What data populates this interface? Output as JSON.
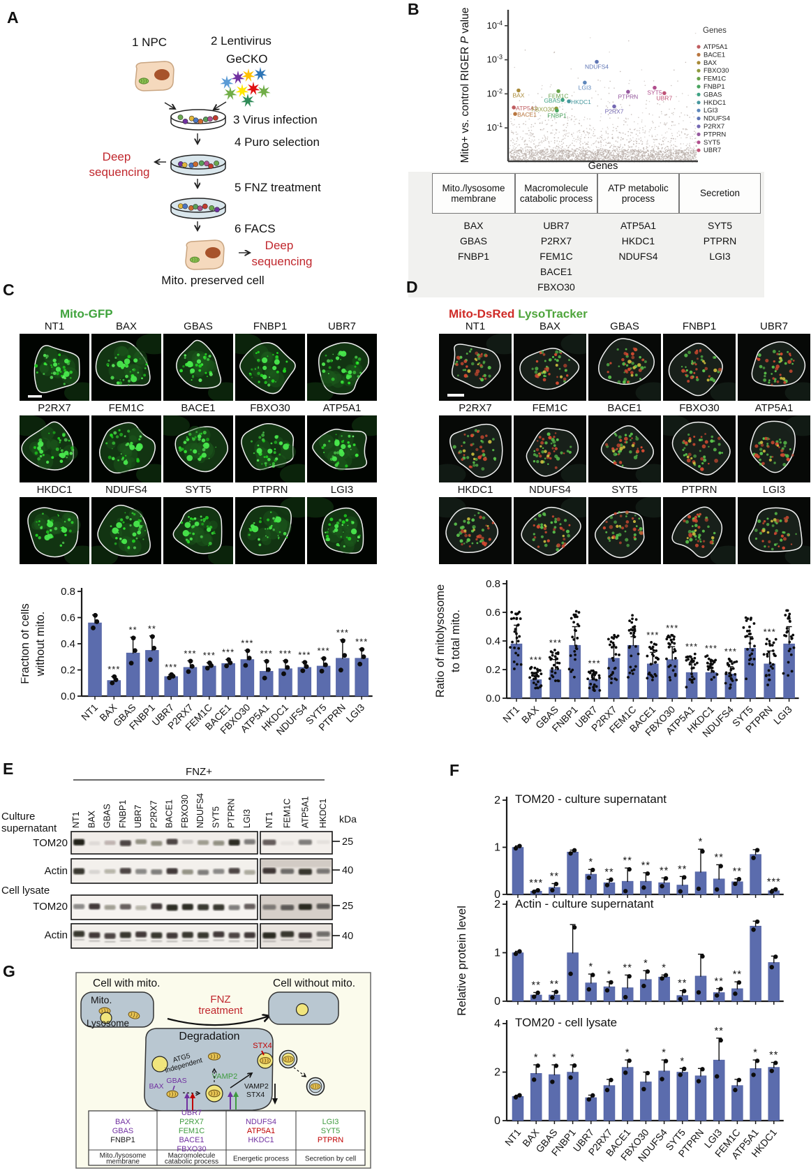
{
  "panel_labels": {
    "A": "A",
    "B": "B",
    "C": "C",
    "D": "D",
    "E": "E",
    "F": "F",
    "G": "G"
  },
  "panel_a": {
    "step1": "1  NPC",
    "step2_line1": "2  Lentivirus",
    "step2_line2": "GeCKO",
    "step3": "3  Virus infection",
    "step4": "4  Puro selection",
    "step5": "5  FNZ treatment",
    "step6": "6  FACS",
    "deep_seq_left_line1": "Deep",
    "deep_seq_left_line2": "sequencing",
    "deep_seq_right_line1": "Deep",
    "deep_seq_right_line2": "sequencing",
    "result_label": "Mito. preserved cell",
    "deep_seq_color": "#c0272d"
  },
  "panel_b": {
    "table": {
      "headers": [
        "Mito./lysosome membrane",
        "Macromolecule catabolic process",
        "ATP metabolic process",
        "Secretion"
      ],
      "columns": [
        [
          "BAX",
          "GBAS",
          "FNBP1"
        ],
        [
          "UBR7",
          "P2RX7",
          "FEM1C",
          "BACE1",
          "FBXO30"
        ],
        [
          "ATP5A1",
          "HKDC1",
          "NDUFS4"
        ],
        [
          "SYT5",
          "PTPRN",
          "LGI3"
        ]
      ]
    }
  },
  "panel_c": {
    "channel_label": "Mito-GFP",
    "channel_color": "#3fa33c",
    "grid_labels": [
      "NT1",
      "BAX",
      "GBAS",
      "FNBP1",
      "UBR7",
      "P2RX7",
      "FEM1C",
      "BACE1",
      "FBXO30",
      "ATP5A1",
      "HKDC1",
      "NDUFS4",
      "SYT5",
      "PTPRN",
      "LGI3"
    ]
  },
  "panel_d": {
    "channel_label_red": "Mito-DsRed",
    "channel_label_green": "LysoTracker",
    "red_color": "#cf2b27",
    "green_color": "#4fa53c",
    "grid_labels": [
      "NT1",
      "BAX",
      "GBAS",
      "FNBP1",
      "UBR7",
      "P2RX7",
      "FEM1C",
      "BACE1",
      "FBXO30",
      "ATP5A1",
      "HKDC1",
      "NDUFS4",
      "SYT5",
      "PTPRN",
      "LGI3"
    ]
  },
  "panel_e": {
    "group_label": "FNZ+",
    "lanes_main": [
      "NT1",
      "BAX",
      "GBAS",
      "FNBP1",
      "UBR7",
      "P2RX7",
      "BACE1",
      "FBXO30",
      "NDUFS4",
      "SYT5",
      "PTPRN",
      "LGI3"
    ],
    "lanes_extra": [
      "NT1",
      "FEM1C",
      "ATP5A1",
      "HKDC1"
    ],
    "group1_line1": "Culture",
    "group1_line2": "supernatant",
    "group2": "Cell lysate",
    "kda_label": "kDa",
    "rows": [
      {
        "name": "TOM20",
        "group": "culture supernatant",
        "marker": "25",
        "bands_main": [
          1,
          0.08,
          0.25,
          0.8,
          0.45,
          0.45,
          0.8,
          0.15,
          0.4,
          0.45,
          0.95,
          0.55
        ],
        "bands_extra": [
          0.7,
          0.05,
          0.55,
          0.06
        ]
      },
      {
        "name": "Actin",
        "group": "culture supernatant",
        "marker": "40",
        "bands_main": [
          0.9,
          0.12,
          0.3,
          0.8,
          0.5,
          0.55,
          0.85,
          0.45,
          0.55,
          0.5,
          0.8,
          0.35
        ],
        "bands_extra": [
          0.85,
          0.6,
          0.9,
          0.55
        ]
      },
      {
        "name": "TOM20",
        "group": "cell lysate",
        "marker": "25",
        "bands_main": [
          0.5,
          0.85,
          0.4,
          0.7,
          0.3,
          0.85,
          0.95,
          0.95,
          0.9,
          0.9,
          0.55,
          0.7
        ],
        "bands_extra": [
          0.5,
          0.65,
          0.95,
          0.65
        ]
      },
      {
        "name": "Actin",
        "group": "cell lysate",
        "marker": "40",
        "bands_main": [
          0.9,
          0.85,
          0.8,
          0.9,
          0.85,
          0.9,
          0.85,
          0.9,
          0.9,
          0.85,
          0.8,
          0.85
        ],
        "bands_extra": [
          0.95,
          0.9,
          0.85,
          0.6
        ]
      }
    ]
  },
  "panel_g": {
    "cell_with": "Cell with mito.",
    "cell_without": "Cell without mito.",
    "mito": "Mito.",
    "lysosome": "Lysosome",
    "fnz_line1": "FNZ",
    "fnz_line2": "treatment",
    "degradation": "Degradation",
    "atg5_line1": "ATG5",
    "atg5_line2": "independent",
    "bax": "BAX",
    "gbas": "GBAS",
    "vamp2": "VAMP2",
    "stx4": "STX4",
    "vamp2_stx4_line1": "VAMP2",
    "vamp2_stx4_line2": "STX4",
    "colors": {
      "purple": "#7030a0",
      "green": "#3f9b3f",
      "red": "#c00000",
      "fnz": "#c0272d",
      "cell_fill": "#b9c7d1",
      "bg": "#fbfbec"
    },
    "table": {
      "columns": [
        {
          "header_line1": "Mito./lysosome",
          "header_line2": "membrane",
          "genes": [
            {
              "name": "BAX",
              "color": "#7030a0"
            },
            {
              "name": "GBAS",
              "color": "#7030a0"
            },
            {
              "name": "FNBP1",
              "color": "#1a1a1a"
            }
          ]
        },
        {
          "header_line1": "Macromolecule",
          "header_line2": "catabolic process",
          "genes": [
            {
              "name": "UBR7",
              "color": "#7030a0"
            },
            {
              "name": "P2RX7",
              "color": "#3f9b3f"
            },
            {
              "name": "FEM1C",
              "color": "#3f9b3f"
            },
            {
              "name": "BACE1",
              "color": "#7030a0"
            },
            {
              "name": "FBXO30",
              "color": "#7030a0"
            }
          ]
        },
        {
          "header_line1": "Energetic process",
          "header_line2": "",
          "genes": [
            {
              "name": "NDUFS4",
              "color": "#7030a0"
            },
            {
              "name": "ATP5A1",
              "color": "#c00000"
            },
            {
              "name": "HKDC1",
              "color": "#7030a0"
            }
          ]
        },
        {
          "header_line1": "Secretion by cell",
          "header_line2": "",
          "genes": [
            {
              "name": "LGI3",
              "color": "#3f9b3f"
            },
            {
              "name": "SYT5",
              "color": "#3f9b3f"
            },
            {
              "name": "PTPRN",
              "color": "#c00000"
            }
          ]
        }
      ]
    }
  },
  "chart_data": [
    {
      "id": "riger_scatter",
      "type": "scatter",
      "xlabel": "Genes",
      "ylabel": "Mito+ vs. control RIGER P value",
      "y_ticks": [
        "10^-4",
        "10^-3",
        "10^-2",
        "10^-1"
      ],
      "y_scale": "log p value, inverted (smaller P plotted higher)",
      "legend_title": "Genes",
      "genes": [
        {
          "name": "ATP5A1",
          "color": "#c05d60",
          "x": 0.03,
          "neg_log10_p": 1.6,
          "label_pos": "right"
        },
        {
          "name": "BACE1",
          "color": "#b9763f",
          "x": 0.037,
          "neg_log10_p": 1.41,
          "label_pos": "right"
        },
        {
          "name": "BAX",
          "color": "#a98a38",
          "x": 0.055,
          "neg_log10_p": 2.1,
          "label_pos": "below"
        },
        {
          "name": "FBXO30",
          "color": "#8f9a3d",
          "x": 0.254,
          "neg_log10_p": 1.57,
          "label_pos": "left"
        },
        {
          "name": "FEM1C",
          "color": "#68a24a",
          "x": 0.265,
          "neg_log10_p": 2.08,
          "label_pos": "below"
        },
        {
          "name": "FNBP1",
          "color": "#49a45f",
          "x": 0.257,
          "neg_log10_p": 1.51,
          "label_pos": "below"
        },
        {
          "name": "GBAS",
          "color": "#3fa385",
          "x": 0.287,
          "neg_log10_p": 1.82,
          "label_pos": "left"
        },
        {
          "name": "HKDC1",
          "color": "#47989e",
          "x": 0.32,
          "neg_log10_p": 1.78,
          "label_pos": "right"
        },
        {
          "name": "LGI3",
          "color": "#5e87bb",
          "x": 0.404,
          "neg_log10_p": 2.33,
          "label_pos": "below"
        },
        {
          "name": "NDUFS4",
          "color": "#5f75b5",
          "x": 0.467,
          "neg_log10_p": 2.94,
          "label_pos": "below"
        },
        {
          "name": "P2RX7",
          "color": "#7468b3",
          "x": 0.559,
          "neg_log10_p": 1.63,
          "label_pos": "below"
        },
        {
          "name": "PTPRN",
          "color": "#96599f",
          "x": 0.632,
          "neg_log10_p": 2.06,
          "label_pos": "below"
        },
        {
          "name": "SYT5",
          "color": "#b14e8d",
          "x": 0.772,
          "neg_log10_p": 2.18,
          "label_pos": "below"
        },
        {
          "name": "UBR7",
          "color": "#bf5377",
          "x": 0.823,
          "neg_log10_p": 2.02,
          "label_pos": "below"
        }
      ],
      "background": {
        "description": "~19,000 unlabeled genes",
        "color": "#b7aca6"
      }
    },
    {
      "id": "fraction_without_mito",
      "type": "bar",
      "ylabel": "Fraction of cells without mito.",
      "ylabel_line1": "Fraction of cells",
      "ylabel_line2": "without mito.",
      "ylim": [
        0,
        0.8
      ],
      "ytick_labels": [
        "0.0",
        "0.2",
        "0.4",
        "0.6",
        "0.8"
      ],
      "yticks": [
        0,
        0.2,
        0.4,
        0.6,
        0.8
      ],
      "categories": [
        "NT1",
        "BAX",
        "GBAS",
        "FNBP1",
        "UBR7",
        "P2RX7",
        "FEM1C",
        "BACE1",
        "FBXO30",
        "ATP5A1",
        "HKDC1",
        "NDUFS4",
        "SYT5",
        "PTPRN",
        "LGI3"
      ],
      "values": [
        0.56,
        0.12,
        0.33,
        0.35,
        0.15,
        0.22,
        0.23,
        0.25,
        0.28,
        0.19,
        0.21,
        0.22,
        0.23,
        0.29,
        0.29
      ],
      "errors": [
        0.06,
        0.03,
        0.12,
        0.11,
        0.015,
        0.05,
        0.025,
        0.03,
        0.07,
        0.08,
        0.06,
        0.04,
        0.06,
        0.14,
        0.07
      ],
      "sig": [
        "",
        "***",
        "**",
        "**",
        "***",
        "***",
        "***",
        "***",
        "***",
        "***",
        "***",
        "***",
        "***",
        "***",
        "***"
      ],
      "points_per_bar": 3,
      "bar_color": "#5b6cad"
    },
    {
      "id": "ratio_mitolysosome",
      "type": "bar",
      "ylabel": "Ratio of mitolysosome to total mito.",
      "ylabel_line1": "Ratio of mitolysosome",
      "ylabel_line2": "to total mito.",
      "ylim": [
        0,
        0.8
      ],
      "ytick_labels": [
        "0.0",
        "0.2",
        "0.4",
        "0.6",
        "0.8"
      ],
      "yticks": [
        0,
        0.2,
        0.4,
        0.6,
        0.8
      ],
      "categories": [
        "NT1",
        "BAX",
        "GBAS",
        "FNBP1",
        "UBR7",
        "P2RX7",
        "FEM1C",
        "BACE1",
        "FBXO30",
        "ATP5A1",
        "HKDC1",
        "NDUFS4",
        "SYT5",
        "PTPRN",
        "LGI3"
      ],
      "values": [
        0.38,
        0.13,
        0.2,
        0.37,
        0.13,
        0.28,
        0.37,
        0.24,
        0.27,
        0.18,
        0.18,
        0.17,
        0.35,
        0.24,
        0.38
      ],
      "errors": [
        0.13,
        0.05,
        0.07,
        0.13,
        0.04,
        0.08,
        0.06,
        0.08,
        0.09,
        0.07,
        0.06,
        0.05,
        0.08,
        0.09,
        0.12
      ],
      "sig": [
        "",
        "***",
        "***",
        "",
        "***",
        "",
        "",
        "***",
        "***",
        "***",
        "***",
        "***",
        "",
        "***",
        ""
      ],
      "points_per_bar": 28,
      "bar_color": "#5b6cad"
    },
    {
      "id": "tom20_culture_supernatant",
      "type": "bar",
      "title": "TOM20 - culture supernatant",
      "ylim": [
        0,
        2
      ],
      "ytick_labels": [
        "0",
        "1",
        "2"
      ],
      "yticks": [
        0,
        1,
        2
      ],
      "categories": [
        "NT1",
        "BAX",
        "GBAS",
        "FNBP1",
        "UBR7",
        "P2RX7",
        "BACE1",
        "FBXO30",
        "NDUFS4",
        "SYT5",
        "PTPRN",
        "LGI3",
        "FEM1C",
        "ATP5A1",
        "HKDC1"
      ],
      "values": [
        1.0,
        0.07,
        0.15,
        0.9,
        0.43,
        0.25,
        0.28,
        0.28,
        0.25,
        0.2,
        0.48,
        0.33,
        0.27,
        0.85,
        0.08
      ],
      "errors": [
        0.03,
        0.02,
        0.08,
        0.04,
        0.1,
        0.07,
        0.28,
        0.18,
        0.1,
        0.18,
        0.48,
        0.3,
        0.06,
        0.1,
        0.03
      ],
      "sig": [
        "",
        "***",
        "**",
        "",
        "*",
        "**",
        "**",
        "**",
        "**",
        "**",
        "*",
        "**",
        "**",
        "",
        "***"
      ],
      "points_per_bar": 2,
      "bar_color": "#5b6cad"
    },
    {
      "id": "actin_culture_supernatant",
      "type": "bar",
      "title": "Actin - culture supernatant",
      "ylabel": "Relative protein level",
      "ylim": [
        0,
        2
      ],
      "ytick_labels": [
        "0",
        "1",
        "2"
      ],
      "yticks": [
        0,
        1,
        2
      ],
      "categories": [
        "NT1",
        "BAX",
        "GBAS",
        "FNBP1",
        "UBR7",
        "P2RX7",
        "BACE1",
        "FBXO30",
        "NDUFS4",
        "SYT5",
        "PTPRN",
        "LGI3",
        "FEM1C",
        "ATP5A1",
        "HKDC1"
      ],
      "values": [
        1.0,
        0.13,
        0.13,
        1.0,
        0.38,
        0.3,
        0.28,
        0.45,
        0.5,
        0.12,
        0.52,
        0.18,
        0.26,
        1.55,
        0.8
      ],
      "errors": [
        0.03,
        0.05,
        0.07,
        0.58,
        0.18,
        0.1,
        0.26,
        0.18,
        0.04,
        0.1,
        0.45,
        0.08,
        0.14,
        0.1,
        0.13
      ],
      "sig": [
        "",
        "**",
        "**",
        "",
        "*",
        "*",
        "**",
        "*",
        "*",
        "**",
        "",
        "**",
        "**",
        "",
        ""
      ],
      "points_per_bar": 2,
      "bar_color": "#5b6cad"
    },
    {
      "id": "tom20_cell_lysate",
      "type": "bar",
      "title": "TOM20 - cell lysate",
      "ylim": [
        0,
        4
      ],
      "ytick_labels": [
        "0",
        "2",
        "4"
      ],
      "yticks": [
        0,
        2,
        4
      ],
      "categories": [
        "NT1",
        "BAX",
        "GBAS",
        "FNBP1",
        "UBR7",
        "P2RX7",
        "BACE1",
        "FBXO30",
        "NDUFS4",
        "SYT5",
        "PTPRN",
        "LGI3",
        "FEM1C",
        "ATP5A1",
        "HKDC1"
      ],
      "values": [
        1.0,
        1.95,
        1.9,
        2.0,
        0.95,
        1.45,
        2.2,
        1.6,
        2.05,
        2.0,
        1.85,
        2.5,
        1.45,
        2.15,
        2.2
      ],
      "errors": [
        0.05,
        0.35,
        0.4,
        0.3,
        0.1,
        0.25,
        0.3,
        0.4,
        0.45,
        0.15,
        0.3,
        0.9,
        0.25,
        0.35,
        0.2
      ],
      "sig": [
        "",
        "*",
        "*",
        "*",
        "",
        "",
        "*",
        "",
        "*",
        "*",
        "",
        "**",
        "",
        "*",
        "**"
      ],
      "points_per_bar": 2,
      "bar_color": "#5b6cad"
    }
  ]
}
